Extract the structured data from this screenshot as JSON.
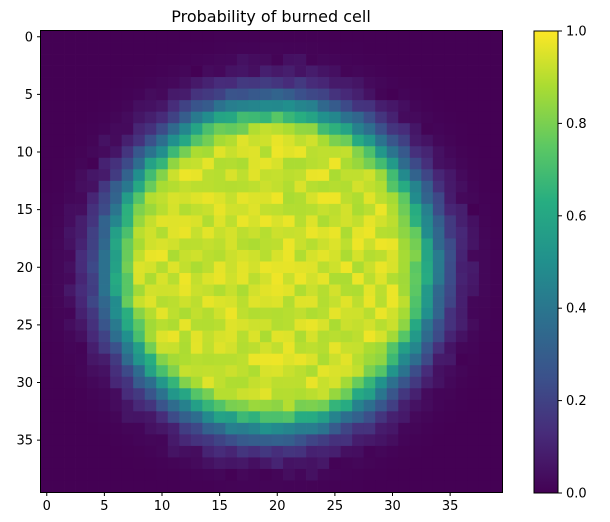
{
  "chart_data": {
    "type": "heatmap",
    "title": "Probability of burned cell",
    "xlabel": "",
    "ylabel": "",
    "grid_size": [
      40,
      40
    ],
    "x_ticks": [
      0,
      5,
      10,
      15,
      20,
      25,
      30,
      35
    ],
    "y_ticks": [
      0,
      5,
      10,
      15,
      20,
      25,
      30,
      35
    ],
    "y_axis_direction": "top-to-bottom",
    "value_range": [
      0.0,
      1.0
    ],
    "colormap": "viridis",
    "colorbar": {
      "ticks": [
        "0.0",
        "0.2",
        "0.4",
        "0.6",
        "0.8",
        "1.0"
      ],
      "placement": "right"
    },
    "field_model": {
      "description": "Approximately circular burned region centered near column 19.5, row 20; plateau of ~0.93 inside radius ~11, falling to ~0 by radius ~16, with slight cell-level noise.",
      "center": [
        19.5,
        20.0
      ],
      "plateau_value": 0.93,
      "plateau_radius": 11.0,
      "falloff_width": 4.8,
      "noise_amplitude": 0.05,
      "noise_seed": 7
    }
  }
}
